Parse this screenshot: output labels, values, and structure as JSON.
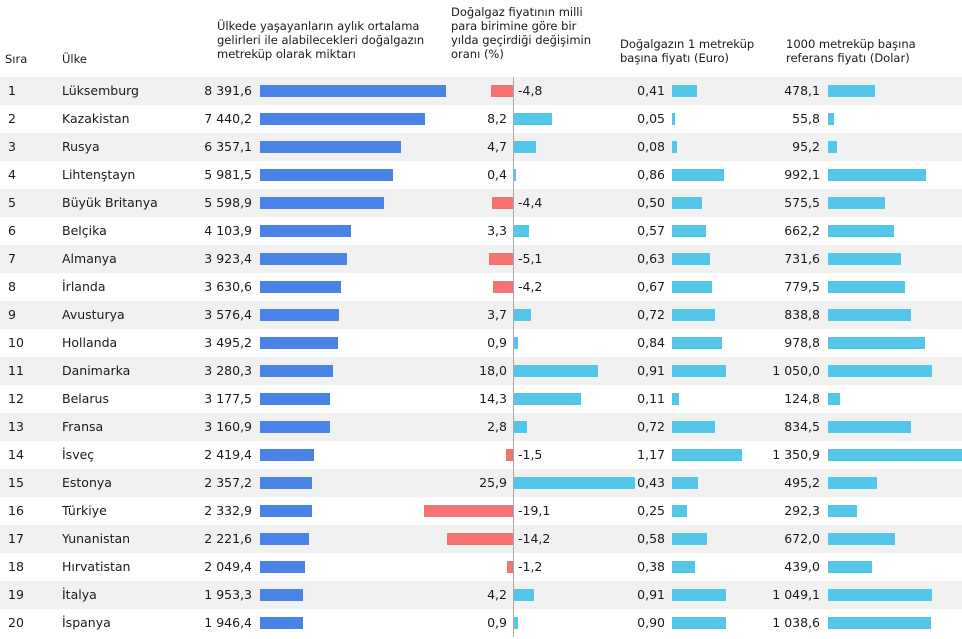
{
  "chart_data": {
    "type": "table",
    "headers": {
      "rank": "Sıra",
      "country": "Ülke",
      "income": [
        "Ülkede yaşayanların aylık ortalama",
        "gelirleri ile alabilecekleri doğalgazın",
        "metreküp olarak miktarı"
      ],
      "change": [
        "Doğalgaz fiyatının milli",
        "para birimine göre bir",
        "yılda geçirdiği değişimin",
        "oranı (%)"
      ],
      "euro": [
        "Doğalgazın 1 metreküp",
        "başına fiyatı (Euro)"
      ],
      "usd": [
        "1000 metreküp başına",
        "referans fiyatı (Dolar)"
      ]
    },
    "rows": [
      {
        "rank": "1",
        "country": "Lüksemburg",
        "income": "8 391,6",
        "income_v": 8391.6,
        "change": "-4,8",
        "change_v": -4.8,
        "euro": "0,41",
        "euro_v": 0.41,
        "usd": "478,1",
        "usd_v": 478.1
      },
      {
        "rank": "2",
        "country": "Kazakistan",
        "income": "7 440,2",
        "income_v": 7440.2,
        "change": "8,2",
        "change_v": 8.2,
        "euro": "0,05",
        "euro_v": 0.05,
        "usd": "55,8",
        "usd_v": 55.8
      },
      {
        "rank": "3",
        "country": "Rusya",
        "income": "6 357,1",
        "income_v": 6357.1,
        "change": "4,7",
        "change_v": 4.7,
        "euro": "0,08",
        "euro_v": 0.08,
        "usd": "95,2",
        "usd_v": 95.2
      },
      {
        "rank": "4",
        "country": "Lihtenştayn",
        "income": "5 981,5",
        "income_v": 5981.5,
        "change": "0,4",
        "change_v": 0.4,
        "euro": "0,86",
        "euro_v": 0.86,
        "usd": "992,1",
        "usd_v": 992.1
      },
      {
        "rank": "5",
        "country": "Büyük Britanya",
        "income": "5 598,9",
        "income_v": 5598.9,
        "change": "-4,4",
        "change_v": -4.4,
        "euro": "0,50",
        "euro_v": 0.5,
        "usd": "575,5",
        "usd_v": 575.5
      },
      {
        "rank": "6",
        "country": "Belçika",
        "income": "4 103,9",
        "income_v": 4103.9,
        "change": "3,3",
        "change_v": 3.3,
        "euro": "0,57",
        "euro_v": 0.57,
        "usd": "662,2",
        "usd_v": 662.2
      },
      {
        "rank": "7",
        "country": "Almanya",
        "income": "3 923,4",
        "income_v": 3923.4,
        "change": "-5,1",
        "change_v": -5.1,
        "euro": "0,63",
        "euro_v": 0.63,
        "usd": "731,6",
        "usd_v": 731.6
      },
      {
        "rank": "8",
        "country": "İrlanda",
        "income": "3 630,6",
        "income_v": 3630.6,
        "change": "-4,2",
        "change_v": -4.2,
        "euro": "0,67",
        "euro_v": 0.67,
        "usd": "779,5",
        "usd_v": 779.5
      },
      {
        "rank": "9",
        "country": "Avusturya",
        "income": "3 576,4",
        "income_v": 3576.4,
        "change": "3,7",
        "change_v": 3.7,
        "euro": "0,72",
        "euro_v": 0.72,
        "usd": "838,8",
        "usd_v": 838.8
      },
      {
        "rank": "10",
        "country": "Hollanda",
        "income": "3 495,2",
        "income_v": 3495.2,
        "change": "0,9",
        "change_v": 0.9,
        "euro": "0,84",
        "euro_v": 0.84,
        "usd": "978,8",
        "usd_v": 978.8
      },
      {
        "rank": "11",
        "country": "Danimarka",
        "income": "3 280,3",
        "income_v": 3280.3,
        "change": "18,0",
        "change_v": 18.0,
        "euro": "0,91",
        "euro_v": 0.91,
        "usd": "1 050,0",
        "usd_v": 1050.0
      },
      {
        "rank": "12",
        "country": "Belarus",
        "income": "3 177,5",
        "income_v": 3177.5,
        "change": "14,3",
        "change_v": 14.3,
        "euro": "0,11",
        "euro_v": 0.11,
        "usd": "124,8",
        "usd_v": 124.8
      },
      {
        "rank": "13",
        "country": "Fransa",
        "income": "3 160,9",
        "income_v": 3160.9,
        "change": "2,8",
        "change_v": 2.8,
        "euro": "0,72",
        "euro_v": 0.72,
        "usd": "834,5",
        "usd_v": 834.5
      },
      {
        "rank": "14",
        "country": "İsveç",
        "income": "2 419,4",
        "income_v": 2419.4,
        "change": "-1,5",
        "change_v": -1.5,
        "euro": "1,17",
        "euro_v": 1.17,
        "usd": "1 350,9",
        "usd_v": 1350.9
      },
      {
        "rank": "15",
        "country": "Estonya",
        "income": "2 357,2",
        "income_v": 2357.2,
        "change": "25,9",
        "change_v": 25.9,
        "euro": "0,43",
        "euro_v": 0.43,
        "usd": "495,2",
        "usd_v": 495.2
      },
      {
        "rank": "16",
        "country": "Türkiye",
        "income": "2 332,9",
        "income_v": 2332.9,
        "change": "-19,1",
        "change_v": -19.1,
        "euro": "0,25",
        "euro_v": 0.25,
        "usd": "292,3",
        "usd_v": 292.3
      },
      {
        "rank": "17",
        "country": "Yunanistan",
        "income": "2 221,6",
        "income_v": 2221.6,
        "change": "-14,2",
        "change_v": -14.2,
        "euro": "0,58",
        "euro_v": 0.58,
        "usd": "672,0",
        "usd_v": 672.0
      },
      {
        "rank": "18",
        "country": "Hırvatistan",
        "income": "2 049,4",
        "income_v": 2049.4,
        "change": "-1,2",
        "change_v": -1.2,
        "euro": "0,38",
        "euro_v": 0.38,
        "usd": "439,0",
        "usd_v": 439.0
      },
      {
        "rank": "19",
        "country": "İtalya",
        "income": "1 953,3",
        "income_v": 1953.3,
        "change": "4,2",
        "change_v": 4.2,
        "euro": "0,91",
        "euro_v": 0.91,
        "usd": "1 049,1",
        "usd_v": 1049.1
      },
      {
        "rank": "20",
        "country": "İspanya",
        "income": "1 946,4",
        "income_v": 1946.4,
        "change": "0,9",
        "change_v": 0.9,
        "euro": "0,90",
        "euro_v": 0.9,
        "usd": "1 038,6",
        "usd_v": 1038.6
      }
    ],
    "colors": {
      "income_bar": "#4a83e6",
      "positive_bar": "#54c6ea",
      "negative_bar": "#f27372",
      "row_shade": "#f1f1f1",
      "axis": "#a9a9a9"
    }
  }
}
